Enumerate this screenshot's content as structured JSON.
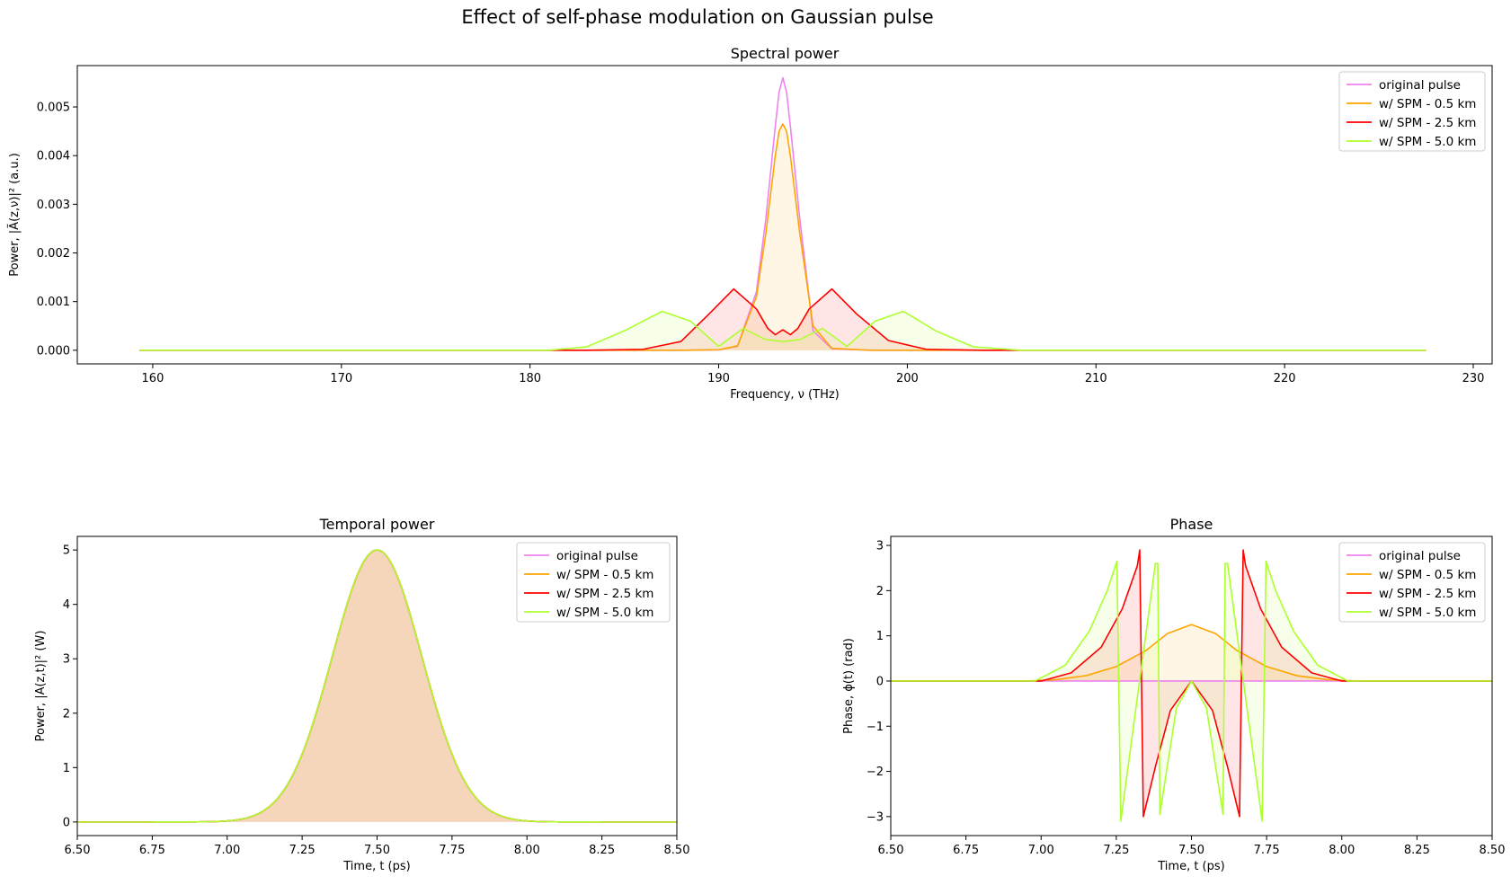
{
  "figure": {
    "suptitle": "Effect of self-phase modulation on Gaussian pulse"
  },
  "chart_data": [
    {
      "id": "spectral",
      "type": "area",
      "title": "Spectral power",
      "xlabel": "Frequency, ν (THz)",
      "ylabel": "Power, |Ã(z,ν)|² (a.u.)",
      "xlim": [
        156,
        231
      ],
      "ylim": [
        -0.00028,
        0.00585
      ],
      "x_ticks": [
        160,
        170,
        180,
        190,
        200,
        210,
        220,
        230
      ],
      "y_ticks": [
        0.0,
        0.001,
        0.002,
        0.003,
        0.004,
        0.005
      ],
      "y_tick_labels": [
        "0.000",
        "0.001",
        "0.002",
        "0.003",
        "0.004",
        "0.005"
      ],
      "legend": "top-right",
      "grid": false,
      "series": [
        {
          "name": "original pulse",
          "color": "#ee82ee",
          "fill": false,
          "x": [
            159.3,
            188,
            190,
            191,
            192,
            192.5,
            193,
            193.2,
            193.4,
            193.6,
            193.8,
            194.3,
            195,
            196,
            198,
            227.5
          ],
          "y": [
            0,
            0,
            1e-05,
            8e-05,
            0.0012,
            0.0027,
            0.0046,
            0.0053,
            0.0056,
            0.0053,
            0.0046,
            0.0027,
            0.0004,
            3e-05,
            0,
            0
          ]
        },
        {
          "name": "w/ SPM - 0.5 km",
          "color": "#ffa500",
          "fill": true,
          "x": [
            159.3,
            188,
            190,
            191,
            192,
            192.5,
            193,
            193.2,
            193.4,
            193.6,
            193.8,
            194.3,
            195,
            196,
            198,
            227.5
          ],
          "y": [
            0,
            0,
            1e-05,
            9e-05,
            0.0011,
            0.0024,
            0.004,
            0.0045,
            0.00465,
            0.0045,
            0.004,
            0.0024,
            0.0005,
            4e-05,
            0,
            0
          ]
        },
        {
          "name": "w/ SPM - 2.5 km",
          "color": "#ff0000",
          "fill": true,
          "x": [
            159.3,
            183,
            186,
            188,
            189.5,
            190.8,
            192,
            192.6,
            193.0,
            193.4,
            193.8,
            194.2,
            194.8,
            196.0,
            197.3,
            199,
            201,
            204,
            227.5
          ],
          "y": [
            0,
            0,
            2e-05,
            0.00018,
            0.00075,
            0.00126,
            0.00085,
            0.00045,
            0.00032,
            0.00042,
            0.00032,
            0.00045,
            0.00085,
            0.00126,
            0.00075,
            0.0002,
            2e-05,
            0,
            0
          ]
        },
        {
          "name": "w/ SPM - 5.0 km",
          "color": "#adff2f",
          "fill": true,
          "x": [
            159.3,
            181,
            183,
            185,
            187,
            188.5,
            190,
            191.3,
            192.5,
            193.4,
            194.3,
            195.5,
            196.8,
            198.3,
            199.8,
            201.5,
            203.5,
            206,
            227.5
          ],
          "y": [
            0,
            0,
            7e-05,
            0.0004,
            0.0008,
            0.0006,
            8e-05,
            0.00045,
            0.00022,
            0.00018,
            0.00022,
            0.00045,
            8e-05,
            0.0006,
            0.0008,
            0.0004,
            7e-05,
            0,
            0
          ]
        }
      ]
    },
    {
      "id": "temporal",
      "type": "area",
      "title": "Temporal power",
      "xlabel": "Time, t (ps)",
      "ylabel": "Power, |A(z,t)|² (W)",
      "xlim": [
        6.5,
        8.5
      ],
      "ylim": [
        -0.25,
        5.25
      ],
      "x_ticks": [
        6.5,
        6.75,
        7.0,
        7.25,
        7.5,
        7.75,
        8.0,
        8.25,
        8.5
      ],
      "x_tick_labels": [
        "6.50",
        "6.75",
        "7.00",
        "7.25",
        "7.50",
        "7.75",
        "8.00",
        "8.25",
        "8.50"
      ],
      "y_ticks": [
        0,
        1,
        2,
        3,
        4,
        5
      ],
      "y_tick_labels": [
        "0",
        "1",
        "2",
        "3",
        "4",
        "5"
      ],
      "legend": "top-right",
      "grid": false,
      "peak_power": 5.0,
      "center_time": 7.5,
      "pulse_width": 0.15,
      "series": [
        {
          "name": "original pulse",
          "color": "#ee82ee",
          "fill": true
        },
        {
          "name": "w/ SPM - 0.5 km",
          "color": "#ffa500",
          "fill": true
        },
        {
          "name": "w/ SPM - 2.5 km",
          "color": "#ff0000",
          "fill": true
        },
        {
          "name": "w/ SPM - 5.0 km",
          "color": "#adff2f",
          "fill": true
        }
      ]
    },
    {
      "id": "phase",
      "type": "area",
      "title": "Phase",
      "xlabel": "Time, t (ps)",
      "ylabel": "Phase, ϕ(t) (rad)",
      "xlim": [
        6.5,
        8.5
      ],
      "ylim": [
        -3.42,
        3.2
      ],
      "x_ticks": [
        6.5,
        6.75,
        7.0,
        7.25,
        7.5,
        7.75,
        8.0,
        8.25,
        8.5
      ],
      "x_tick_labels": [
        "6.50",
        "6.75",
        "7.00",
        "7.25",
        "7.50",
        "7.75",
        "8.00",
        "8.25",
        "8.50"
      ],
      "y_ticks": [
        -3,
        -2,
        -1,
        0,
        1,
        2,
        3
      ],
      "y_tick_labels": [
        "−3",
        "−2",
        "−1",
        "0",
        "1",
        "2",
        "3"
      ],
      "legend": "top-right",
      "grid": false,
      "series": [
        {
          "name": "original pulse",
          "color": "#ee82ee",
          "fill": false,
          "x": [
            6.5,
            8.5
          ],
          "y": [
            0,
            0
          ]
        },
        {
          "name": "w/ SPM - 0.5 km",
          "color": "#ffa500",
          "fill": true,
          "x": [
            6.5,
            6.95,
            7.05,
            7.15,
            7.25,
            7.35,
            7.42,
            7.5,
            7.58,
            7.65,
            7.75,
            7.85,
            7.95,
            8.05,
            8.5
          ],
          "y": [
            0,
            0,
            0.03,
            0.12,
            0.32,
            0.68,
            1.05,
            1.25,
            1.05,
            0.68,
            0.32,
            0.12,
            0.03,
            0,
            0
          ]
        },
        {
          "name": "w/ SPM - 2.5 km",
          "color": "#ff0000",
          "fill": true,
          "x": [
            6.5,
            7.0,
            7.1,
            7.2,
            7.27,
            7.32,
            7.328,
            7.34,
            7.38,
            7.43,
            7.5,
            7.57,
            7.62,
            7.66,
            7.672,
            7.68,
            7.73,
            7.8,
            7.9,
            8.0,
            8.5
          ],
          "y": [
            0,
            0,
            0.18,
            0.75,
            1.6,
            2.55,
            2.9,
            -3.0,
            -1.9,
            -0.65,
            0,
            -0.65,
            -1.9,
            -3.0,
            2.9,
            2.55,
            1.6,
            0.75,
            0.18,
            0,
            0
          ]
        },
        {
          "name": "w/ SPM - 5.0 km",
          "color": "#adff2f",
          "fill": true,
          "x": [
            6.5,
            6.98,
            7.08,
            7.16,
            7.22,
            7.252,
            7.265,
            7.38,
            7.388,
            7.395,
            7.45,
            7.5,
            7.55,
            7.605,
            7.612,
            7.62,
            7.735,
            7.748,
            7.78,
            7.84,
            7.92,
            8.02,
            8.5
          ],
          "y": [
            0,
            0,
            0.35,
            1.1,
            2.0,
            2.65,
            -3.1,
            2.6,
            2.6,
            -2.95,
            -0.6,
            0,
            -0.6,
            -2.95,
            2.6,
            2.6,
            -3.1,
            2.65,
            2.0,
            1.1,
            0.35,
            0,
            0
          ]
        }
      ]
    }
  ]
}
